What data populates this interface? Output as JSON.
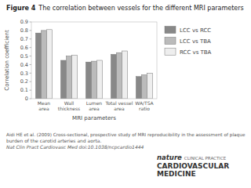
{
  "chart_data": {
    "type": "bar",
    "title": "Figure 4",
    "subtitle": "The correlation between vessels for the different MRI parameters",
    "categories": [
      "Mean\narea",
      "Wall\nthickness",
      "Lumen\narea",
      "Total vessel\narea",
      "WA/TSA\nratio"
    ],
    "series": [
      {
        "name": "LCC vs RCC",
        "color": "#888888",
        "values": [
          0.77,
          0.45,
          0.43,
          0.52,
          0.26
        ]
      },
      {
        "name": "LCC vs TBA",
        "color": "#bbbbbb",
        "values": [
          0.8,
          0.5,
          0.44,
          0.54,
          0.28
        ]
      },
      {
        "name": "RCC vs TBA",
        "color": "#eeeeee",
        "values": [
          0.81,
          0.51,
          0.45,
          0.56,
          0.3
        ]
      }
    ],
    "xlabel": "MRI parameters",
    "ylabel": "Correlation coefficient",
    "ylim": [
      0,
      0.9
    ],
    "yticks": [
      0,
      0.1,
      0.2,
      0.3,
      0.4,
      0.5,
      0.6,
      0.7,
      0.8,
      0.9
    ],
    "grid": false,
    "legend": "right",
    "annotations": [
      "Aidi HE et al. (2009) Cross-sectional, prospective study of MRI reproducibility in the assessment of plaque",
      "burden of the carotid arteries and aorta.",
      "Nat Clin Pract Cardiovasc Med doi:10.1038/ncpcardio1444",
      "nature",
      "CLINICAL PRACTICE",
      "CARDIOVASCULAR",
      "MEDICINE"
    ]
  }
}
